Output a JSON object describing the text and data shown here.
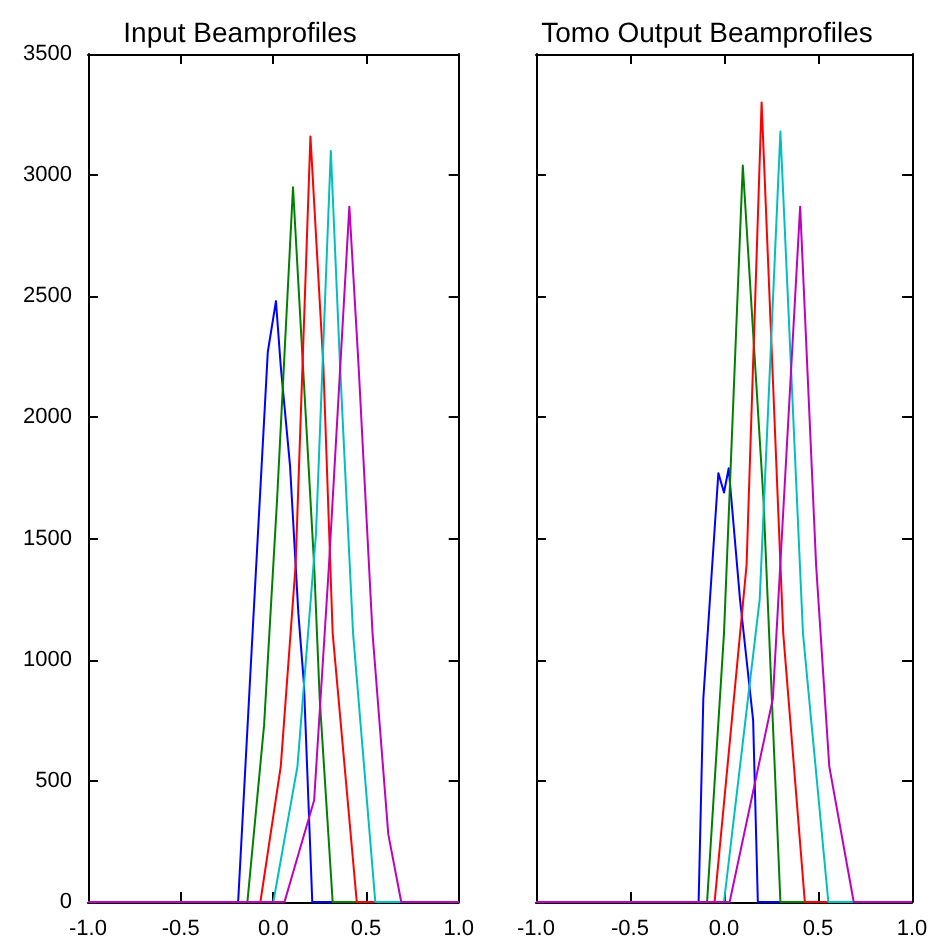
{
  "chart_data": [
    {
      "type": "line",
      "title": "Input Beamprofiles",
      "xlim": [
        -1,
        1
      ],
      "ylim": [
        0,
        3500
      ],
      "xticks": [
        {
          "value": -1,
          "label": "-1.0"
        },
        {
          "value": -0.5,
          "label": "-0.5"
        },
        {
          "value": 0,
          "label": "0.0"
        },
        {
          "value": 0.5,
          "label": "0.5"
        },
        {
          "value": 1,
          "label": "1.0"
        }
      ],
      "yticks": [
        0,
        500,
        1000,
        1500,
        2000,
        2500,
        3000,
        3500
      ],
      "grid": false,
      "marker": "none",
      "line_style": "solid",
      "series": [
        {
          "color": "#0000ff",
          "x": [
            -1,
            -0.19,
            -0.12,
            -0.03,
            0.014,
            0.04,
            0.09,
            0.135,
            0.165,
            0.21,
            1
          ],
          "values": [
            0,
            0,
            1000,
            2270,
            2480,
            2210,
            1800,
            1190,
            900,
            0,
            0
          ]
        },
        {
          "color": "#008000",
          "x": [
            -1,
            -0.14,
            -0.05,
            0.02,
            0.106,
            0.16,
            0.22,
            0.25,
            0.32,
            1
          ],
          "values": [
            0,
            0,
            730,
            1660,
            2950,
            2210,
            1390,
            840,
            0,
            0
          ]
        },
        {
          "color": "#ff0000",
          "x": [
            -1,
            -0.07,
            0.04,
            0.12,
            0.2,
            0.27,
            0.32,
            0.45,
            1
          ],
          "values": [
            0,
            0,
            560,
            1390,
            3160,
            2210,
            1110,
            0,
            0
          ]
        },
        {
          "color": "#00bfbf",
          "x": [
            -1,
            0,
            0.13,
            0.23,
            0.31,
            0.36,
            0.43,
            0.55,
            1
          ],
          "values": [
            0,
            0,
            560,
            1520,
            3100,
            2210,
            1110,
            0,
            0
          ]
        },
        {
          "color": "#bf00bf",
          "x": [
            -1,
            0.06,
            0.22,
            0.3,
            0.41,
            0.46,
            0.535,
            0.62,
            0.69,
            1
          ],
          "values": [
            0,
            0,
            420,
            1390,
            2870,
            2210,
            1110,
            280,
            0,
            0
          ]
        }
      ]
    },
    {
      "type": "line",
      "title": "Tomo Output Beamprofiles",
      "xlim": [
        -1,
        1
      ],
      "ylim": [
        0,
        3500
      ],
      "tick_labels": "x",
      "xticks": [
        {
          "value": -1,
          "label": "-1.0"
        },
        {
          "value": -0.5,
          "label": "-0.5"
        },
        {
          "value": 0,
          "label": "0.0"
        },
        {
          "value": 0.5,
          "label": "0.5"
        },
        {
          "value": 1,
          "label": "1.0"
        }
      ],
      "yticks": [
        0,
        500,
        1000,
        1500,
        2000,
        2500,
        3000,
        3500
      ],
      "grid": false,
      "marker": "none",
      "line_style": "solid",
      "series": [
        {
          "color": "#0000ff",
          "x": [
            -1,
            -0.135,
            -0.11,
            -0.03,
            0,
            0.025,
            0.085,
            0.155,
            0.18,
            1
          ],
          "values": [
            0,
            0,
            840,
            1770,
            1690,
            1790,
            1250,
            750,
            0,
            0
          ]
        },
        {
          "color": "#008000",
          "x": [
            -1,
            -0.09,
            0,
            0.1,
            0.21,
            0.3,
            1
          ],
          "values": [
            0,
            0,
            1110,
            3040,
            1660,
            0,
            0
          ]
        },
        {
          "color": "#ff0000",
          "x": [
            -1,
            -0.05,
            0.12,
            0.2,
            0.315,
            0.43,
            1
          ],
          "values": [
            0,
            0,
            1390,
            3300,
            1110,
            0,
            0
          ]
        },
        {
          "color": "#00bfbf",
          "x": [
            -1,
            0,
            0.19,
            0.3,
            0.42,
            0.555,
            1
          ],
          "values": [
            0,
            0,
            1250,
            3180,
            1110,
            0,
            0
          ]
        },
        {
          "color": "#bf00bf",
          "x": [
            -1,
            0.03,
            0.26,
            0.405,
            0.49,
            0.56,
            0.69,
            1
          ],
          "values": [
            0,
            0,
            840,
            2870,
            1390,
            560,
            0,
            0
          ]
        }
      ]
    }
  ]
}
